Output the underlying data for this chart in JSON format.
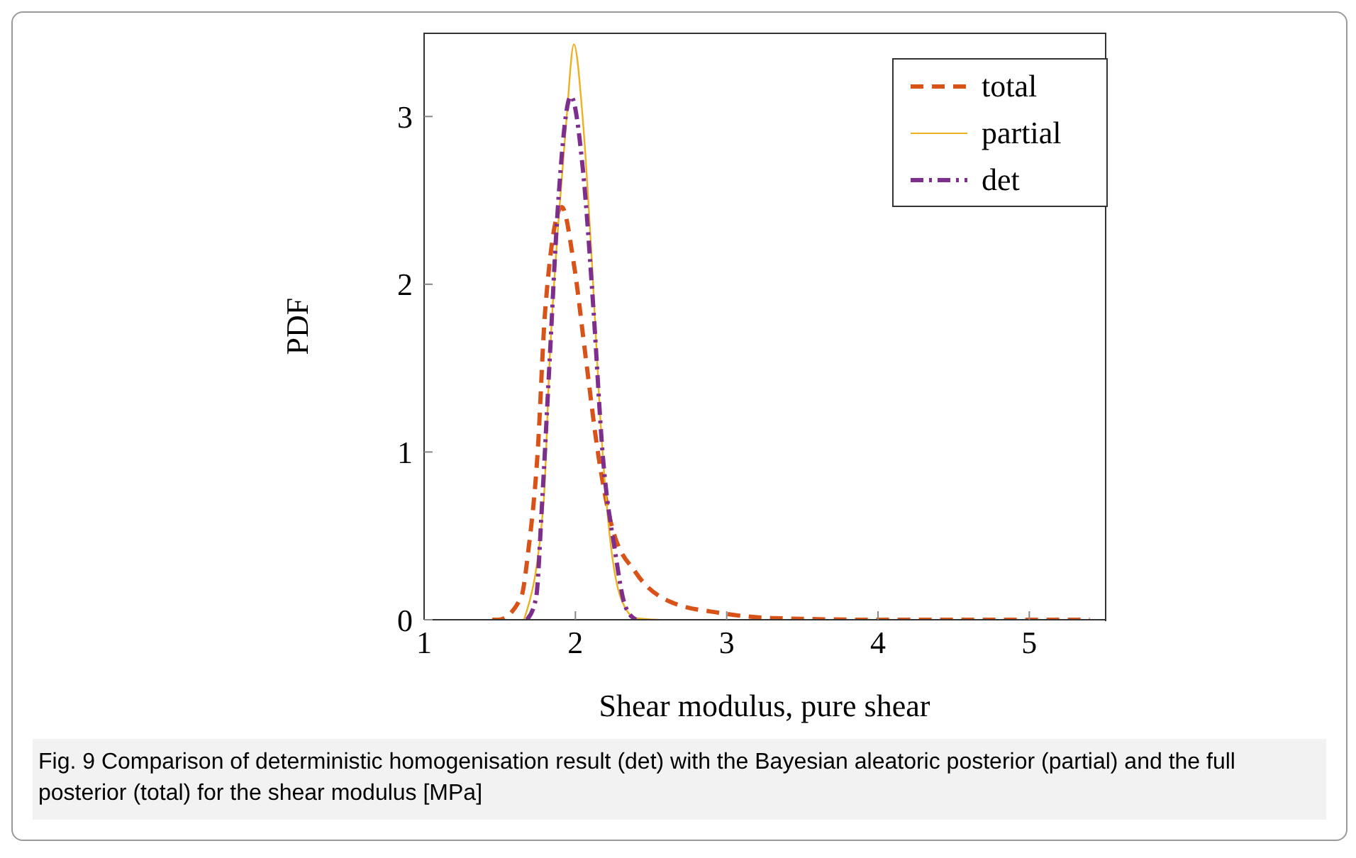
{
  "chart_data": {
    "type": "line",
    "xlabel": "Shear modulus, pure shear",
    "ylabel": "PDF",
    "xlim": [
      1,
      5.5
    ],
    "ylim": [
      0,
      3.5
    ],
    "xticks": [
      1,
      2,
      3,
      4,
      5
    ],
    "yticks": [
      0,
      1,
      2,
      3
    ],
    "grid": false,
    "legend": "top right",
    "marker": "none",
    "annotations": [
      "Fig. 9 Comparison of deterministic homogenisation result (det) with the Bayesian aleatoric posterior (partial) and the full posterior (total) for the shear modulus [MPa]"
    ],
    "series": [
      {
        "name": "total",
        "color": "#d95319",
        "line_style": "dashed",
        "x": [
          1.45,
          1.49,
          1.64,
          1.69,
          1.75,
          1.8,
          1.91,
          1.99,
          2.07,
          2.15,
          2.24,
          2.4,
          2.62,
          2.96,
          3.3,
          4,
          5.4
        ],
        "values": [
          0,
          0,
          0.13,
          0.42,
          0.99,
          1.84,
          2.46,
          2.12,
          1.55,
          0.99,
          0.56,
          0.28,
          0.11,
          0.04,
          0.01,
          0,
          0
        ]
      },
      {
        "name": "partial",
        "color": "#edb120",
        "line_style": "solid",
        "x": [
          1.66,
          1.79,
          1.83,
          1.89,
          1.94,
          1.99,
          2.05,
          2.11,
          2.16,
          2.22,
          2.3,
          2.4,
          2.55
        ],
        "values": [
          0,
          0.7,
          1.55,
          2.4,
          2.97,
          3.43,
          2.97,
          2.12,
          1.27,
          0.56,
          0.13,
          0.01,
          0
        ]
      },
      {
        "name": "det",
        "color": "#7e2f8e",
        "line_style": "dashdot",
        "x": [
          1.68,
          1.74,
          1.78,
          1.83,
          1.88,
          1.97,
          2.05,
          2.12,
          2.18,
          2.26,
          2.33,
          2.4
        ],
        "values": [
          0,
          0.13,
          0.7,
          1.55,
          2.4,
          3.12,
          2.68,
          1.84,
          0.99,
          0.42,
          0.08,
          0
        ]
      }
    ]
  }
}
